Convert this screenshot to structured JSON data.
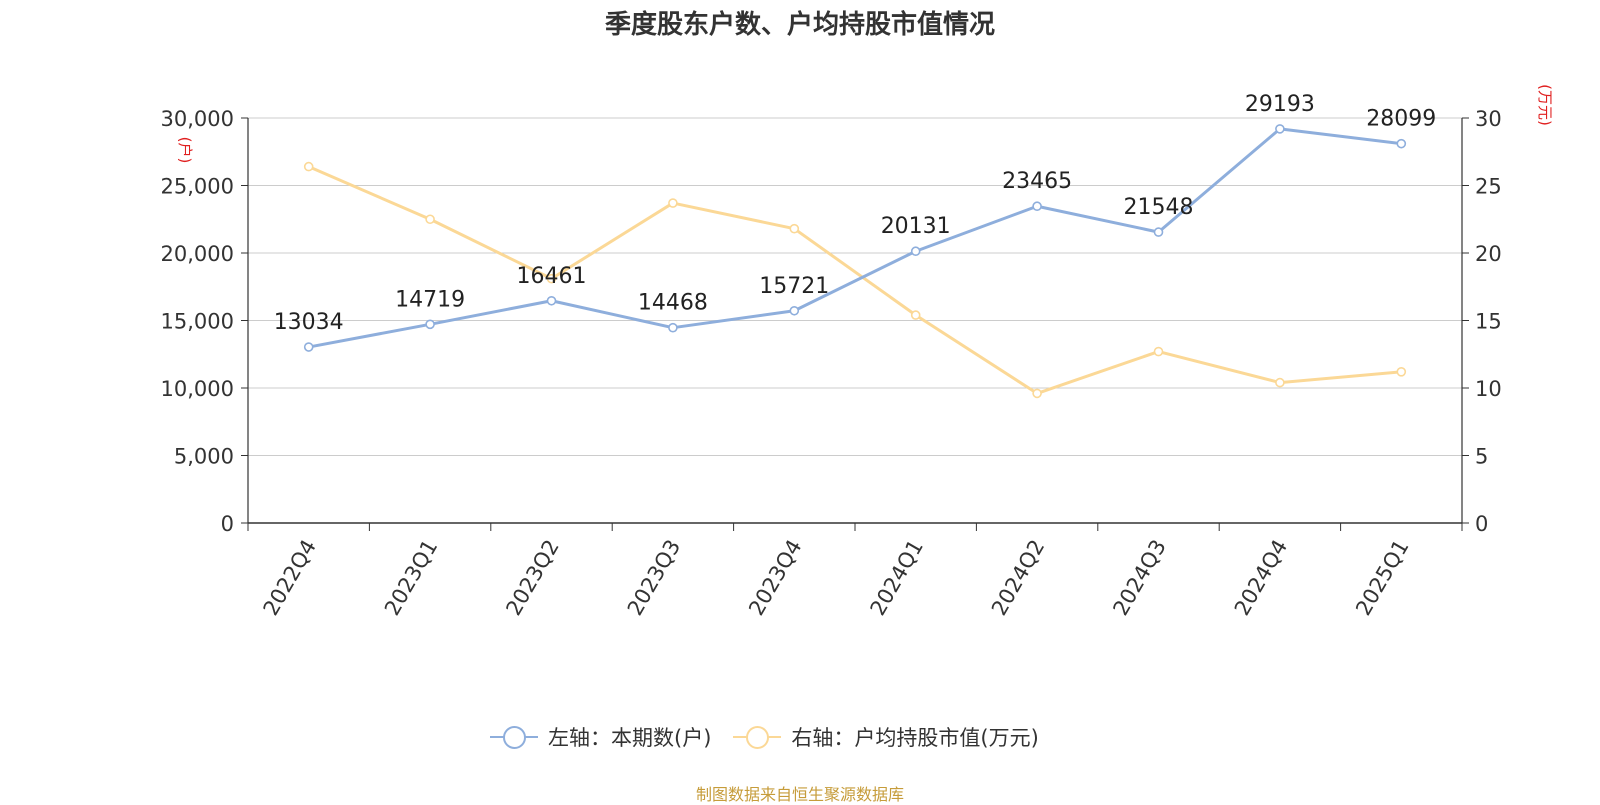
{
  "chart_data": {
    "type": "line",
    "title": "季度股东户数、户均持股市值情况",
    "categories": [
      "2022Q4",
      "2023Q1",
      "2023Q2",
      "2023Q3",
      "2023Q4",
      "2024Q1",
      "2024Q2",
      "2024Q3",
      "2024Q4",
      "2025Q1"
    ],
    "series": [
      {
        "name": "左轴：本期数(户)",
        "axis": "left",
        "color": "#8eaedc",
        "values": [
          13034,
          14719,
          16461,
          14468,
          15721,
          20131,
          23465,
          21548,
          29193,
          28099
        ],
        "labels": [
          "13034",
          "14719",
          "16461",
          "14468",
          "15721",
          "20131",
          "23465",
          "21548",
          "29193",
          "28099"
        ]
      },
      {
        "name": "右轴：户均持股市值(万元)",
        "axis": "right",
        "color": "#fbd896",
        "values": [
          26.4,
          22.5,
          18.1,
          23.7,
          21.8,
          15.4,
          9.6,
          12.7,
          10.4,
          11.2
        ]
      }
    ],
    "left_axis": {
      "unit": "(户)",
      "ylim": [
        0,
        30000
      ],
      "ticks": [
        "0",
        "5,000",
        "10,000",
        "15,000",
        "20,000",
        "25,000",
        "30,000"
      ]
    },
    "right_axis": {
      "unit": "(万元)",
      "ylim": [
        0,
        30
      ],
      "ticks": [
        "0",
        "5",
        "10",
        "15",
        "20",
        "25",
        "30"
      ]
    },
    "grid": true,
    "legend_position": "bottom-center"
  },
  "source": "制图数据来自恒生聚源数据库"
}
